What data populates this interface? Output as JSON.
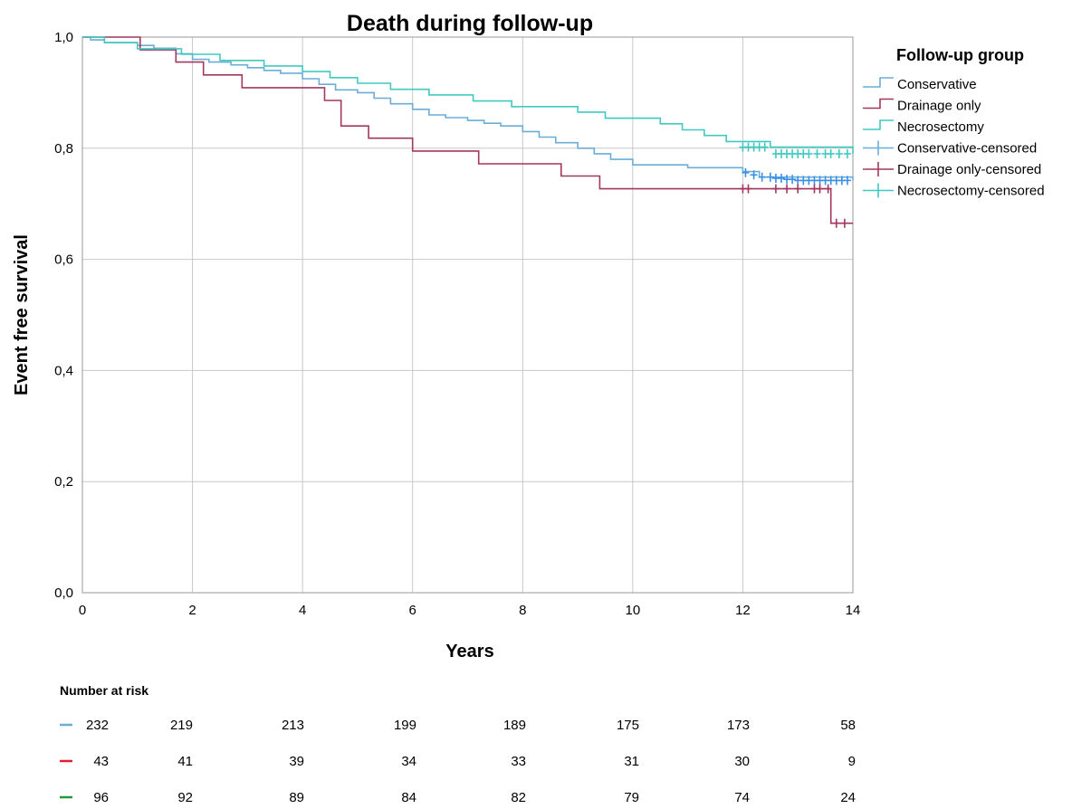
{
  "chart_data": {
    "type": "line",
    "subtype": "kaplan-meier",
    "title": "Death during follow-up",
    "xlabel": "Years",
    "ylabel": "Event free survival",
    "xlim": [
      0,
      14
    ],
    "ylim": [
      0.0,
      1.0
    ],
    "x_ticks": [
      "0",
      "2",
      "4",
      "6",
      "8",
      "10",
      "12",
      "14"
    ],
    "y_ticks": [
      "0,0",
      "0,2",
      "0,4",
      "0,6",
      "0,8",
      "1,0"
    ],
    "grid": "vertical and horizontal",
    "legend": {
      "title": "Follow-up group",
      "placement": "right",
      "entries": [
        "Conservative",
        "Drainage only",
        "Necrosectomy",
        "Conservative-censored",
        "Drainage only-censored",
        "Necrosectomy-censored"
      ]
    },
    "series": [
      {
        "name": "Conservative",
        "color": "#6aaed6",
        "censor_color": "#3a8fe8",
        "x": [
          0,
          0.15,
          0.4,
          1.0,
          1.3,
          1.7,
          2.0,
          2.3,
          2.7,
          3.0,
          3.3,
          3.6,
          4.0,
          4.3,
          4.6,
          5.0,
          5.3,
          5.6,
          6.0,
          6.3,
          6.6,
          7.0,
          7.3,
          7.6,
          8.0,
          8.3,
          8.6,
          9.0,
          9.3,
          9.6,
          10.0,
          11.0,
          12.0,
          12.3,
          14.0
        ],
        "y": [
          1.0,
          0.995,
          0.99,
          0.985,
          0.98,
          0.97,
          0.96,
          0.955,
          0.95,
          0.945,
          0.94,
          0.935,
          0.925,
          0.915,
          0.905,
          0.9,
          0.89,
          0.88,
          0.87,
          0.86,
          0.855,
          0.85,
          0.845,
          0.84,
          0.83,
          0.82,
          0.81,
          0.8,
          0.79,
          0.78,
          0.77,
          0.765,
          0.758,
          0.748,
          0.742
        ],
        "censored_x": [
          12.05,
          12.2,
          12.35,
          12.5,
          12.6,
          12.7,
          12.8,
          12.9,
          13.0,
          13.1,
          13.2,
          13.3,
          13.4,
          13.5,
          13.6,
          13.7,
          13.8,
          13.9
        ],
        "censored_y": [
          0.756,
          0.752,
          0.748,
          0.748,
          0.746,
          0.746,
          0.744,
          0.744,
          0.742,
          0.742,
          0.742,
          0.742,
          0.742,
          0.742,
          0.742,
          0.742,
          0.742,
          0.742
        ]
      },
      {
        "name": "Drainage only",
        "color": "#a3375f",
        "censor_color": "#a3375f",
        "x": [
          0,
          1.05,
          1.7,
          2.2,
          2.9,
          4.4,
          4.7,
          5.2,
          6.0,
          7.2,
          8.7,
          9.4,
          13.6,
          14.0
        ],
        "y": [
          1.0,
          0.977,
          0.955,
          0.932,
          0.909,
          0.886,
          0.84,
          0.818,
          0.795,
          0.772,
          0.75,
          0.727,
          0.665,
          0.665
        ],
        "censored_x": [
          12.0,
          12.1,
          12.6,
          12.8,
          13.0,
          13.3,
          13.4,
          13.55,
          13.7,
          13.85
        ],
        "censored_y": [
          0.727,
          0.727,
          0.727,
          0.727,
          0.727,
          0.727,
          0.727,
          0.727,
          0.665,
          0.665
        ]
      },
      {
        "name": "Necrosectomy",
        "color": "#40c9c0",
        "censor_color": "#40c9c0",
        "x": [
          0,
          0.4,
          1.0,
          1.8,
          2.5,
          3.3,
          4.0,
          4.5,
          5.0,
          5.6,
          6.3,
          7.1,
          7.8,
          9.0,
          9.5,
          10.5,
          10.9,
          11.3,
          11.7,
          12.5,
          14.0
        ],
        "y": [
          1.0,
          0.99,
          0.979,
          0.969,
          0.958,
          0.948,
          0.938,
          0.927,
          0.917,
          0.906,
          0.896,
          0.885,
          0.875,
          0.865,
          0.854,
          0.844,
          0.833,
          0.823,
          0.812,
          0.802,
          0.79
        ],
        "censored_x": [
          12.0,
          12.1,
          12.2,
          12.3,
          12.4,
          12.6,
          12.7,
          12.8,
          12.9,
          13.0,
          13.1,
          13.2,
          13.35,
          13.5,
          13.6,
          13.75,
          13.9
        ],
        "censored_y": [
          0.802,
          0.802,
          0.802,
          0.802,
          0.802,
          0.79,
          0.79,
          0.79,
          0.79,
          0.79,
          0.79,
          0.79,
          0.79,
          0.79,
          0.79,
          0.79,
          0.79
        ]
      }
    ],
    "risk_table": {
      "header": "Number at risk",
      "rows": [
        {
          "color": "#6aaed6",
          "values": [
            "232",
            "219",
            "213",
            "199",
            "189",
            "175",
            "173",
            "58"
          ]
        },
        {
          "color": "#e0202a",
          "values": [
            "43",
            "41",
            "39",
            "34",
            "33",
            "31",
            "30",
            "9"
          ]
        },
        {
          "color": "#1f9a3a",
          "values": [
            "96",
            "92",
            "89",
            "84",
            "82",
            "79",
            "74",
            "24"
          ]
        }
      ]
    }
  }
}
